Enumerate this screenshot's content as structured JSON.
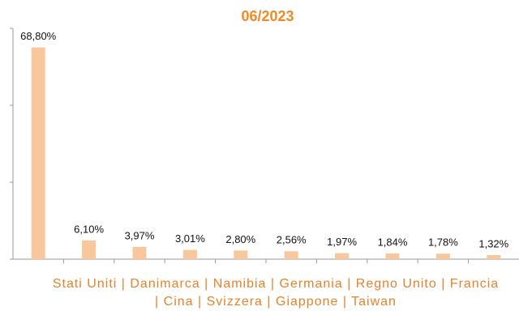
{
  "chart_data": {
    "type": "bar",
    "title": "06/2023",
    "xlabel": "Stati Uniti | Danimarca | Namibia | Germania | Regno Unito | Francia | Cina | Svizzera | Giappone | Taiwan",
    "categories": [
      null,
      null,
      null,
      null,
      null,
      null,
      null,
      null,
      null,
      null
    ],
    "values": [
      68.8,
      6.1,
      3.97,
      3.01,
      2.8,
      2.56,
      1.97,
      1.84,
      1.78,
      1.32
    ],
    "value_labels": [
      "68,80%",
      "6,10%",
      "3,97%",
      "3,01%",
      "2,80%",
      "2,56%",
      "1,97%",
      "1,84%",
      "1,78%",
      "1,32%"
    ],
    "color": "#f8c89c",
    "ylim": [
      0,
      75
    ],
    "yticks": [
      0,
      25,
      50,
      75
    ],
    "grid": false
  }
}
